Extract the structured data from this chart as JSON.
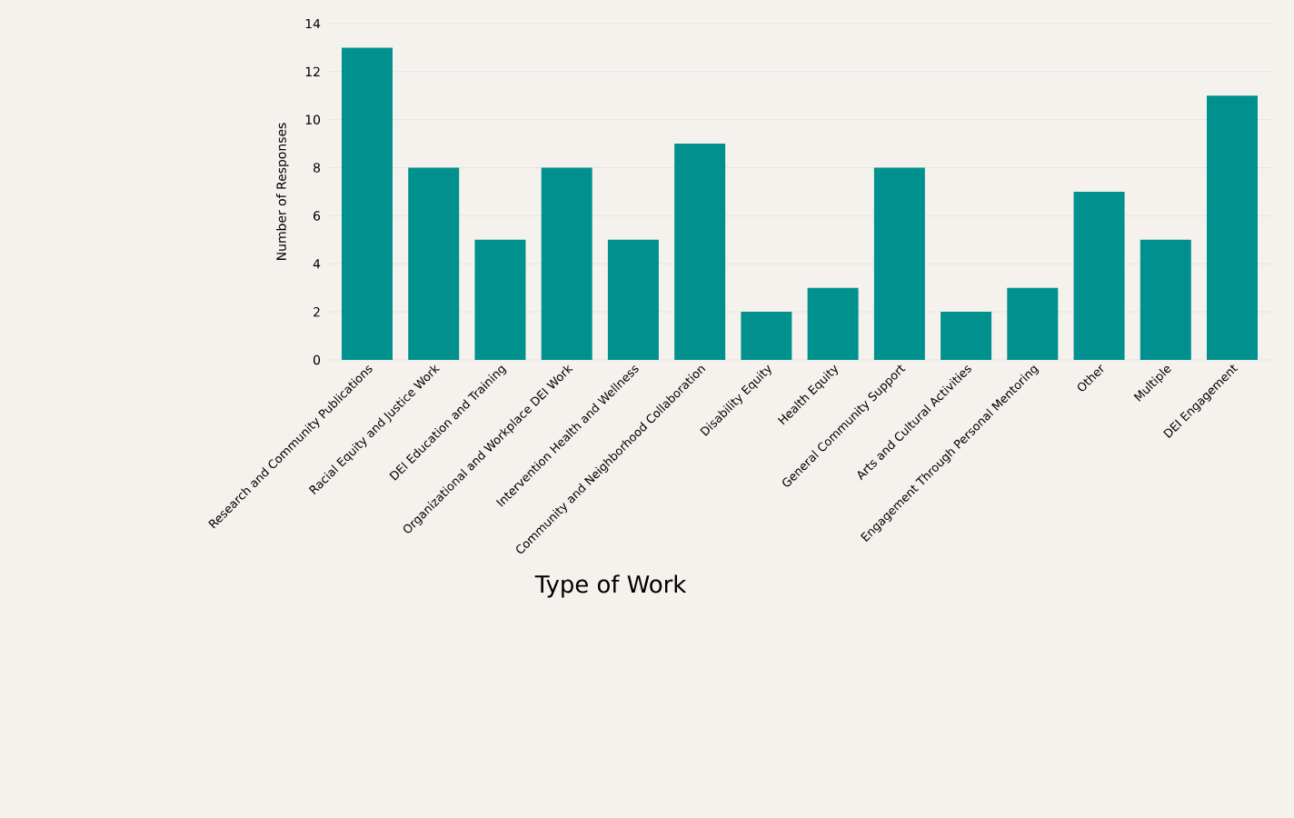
{
  "chart_data": {
    "type": "bar",
    "xlabel": "Type of Work",
    "ylabel": "Number of Responses",
    "categories": [
      "Research and Community Publications",
      "Racial Equity and Justice Work",
      "DEI Education and Training",
      "Organizational and Workplace DEI Work",
      "Intervention Health and Wellness",
      "Community and Neighborhood Collaboration",
      "Disability Equity",
      "Health Equity",
      "General Community Support",
      "Arts and Cultural Activities",
      "Engagement Through Personal Mentoring",
      "Other",
      "Multiple",
      "DEI Engagement"
    ],
    "values": [
      13,
      8,
      5,
      8,
      5,
      9,
      2,
      3,
      8,
      2,
      3,
      7,
      5,
      11
    ],
    "color": "#00918f",
    "ylim": [
      0,
      14
    ],
    "yticks": [
      0,
      2,
      4,
      6,
      8,
      10,
      12,
      14
    ],
    "grid": "y"
  }
}
